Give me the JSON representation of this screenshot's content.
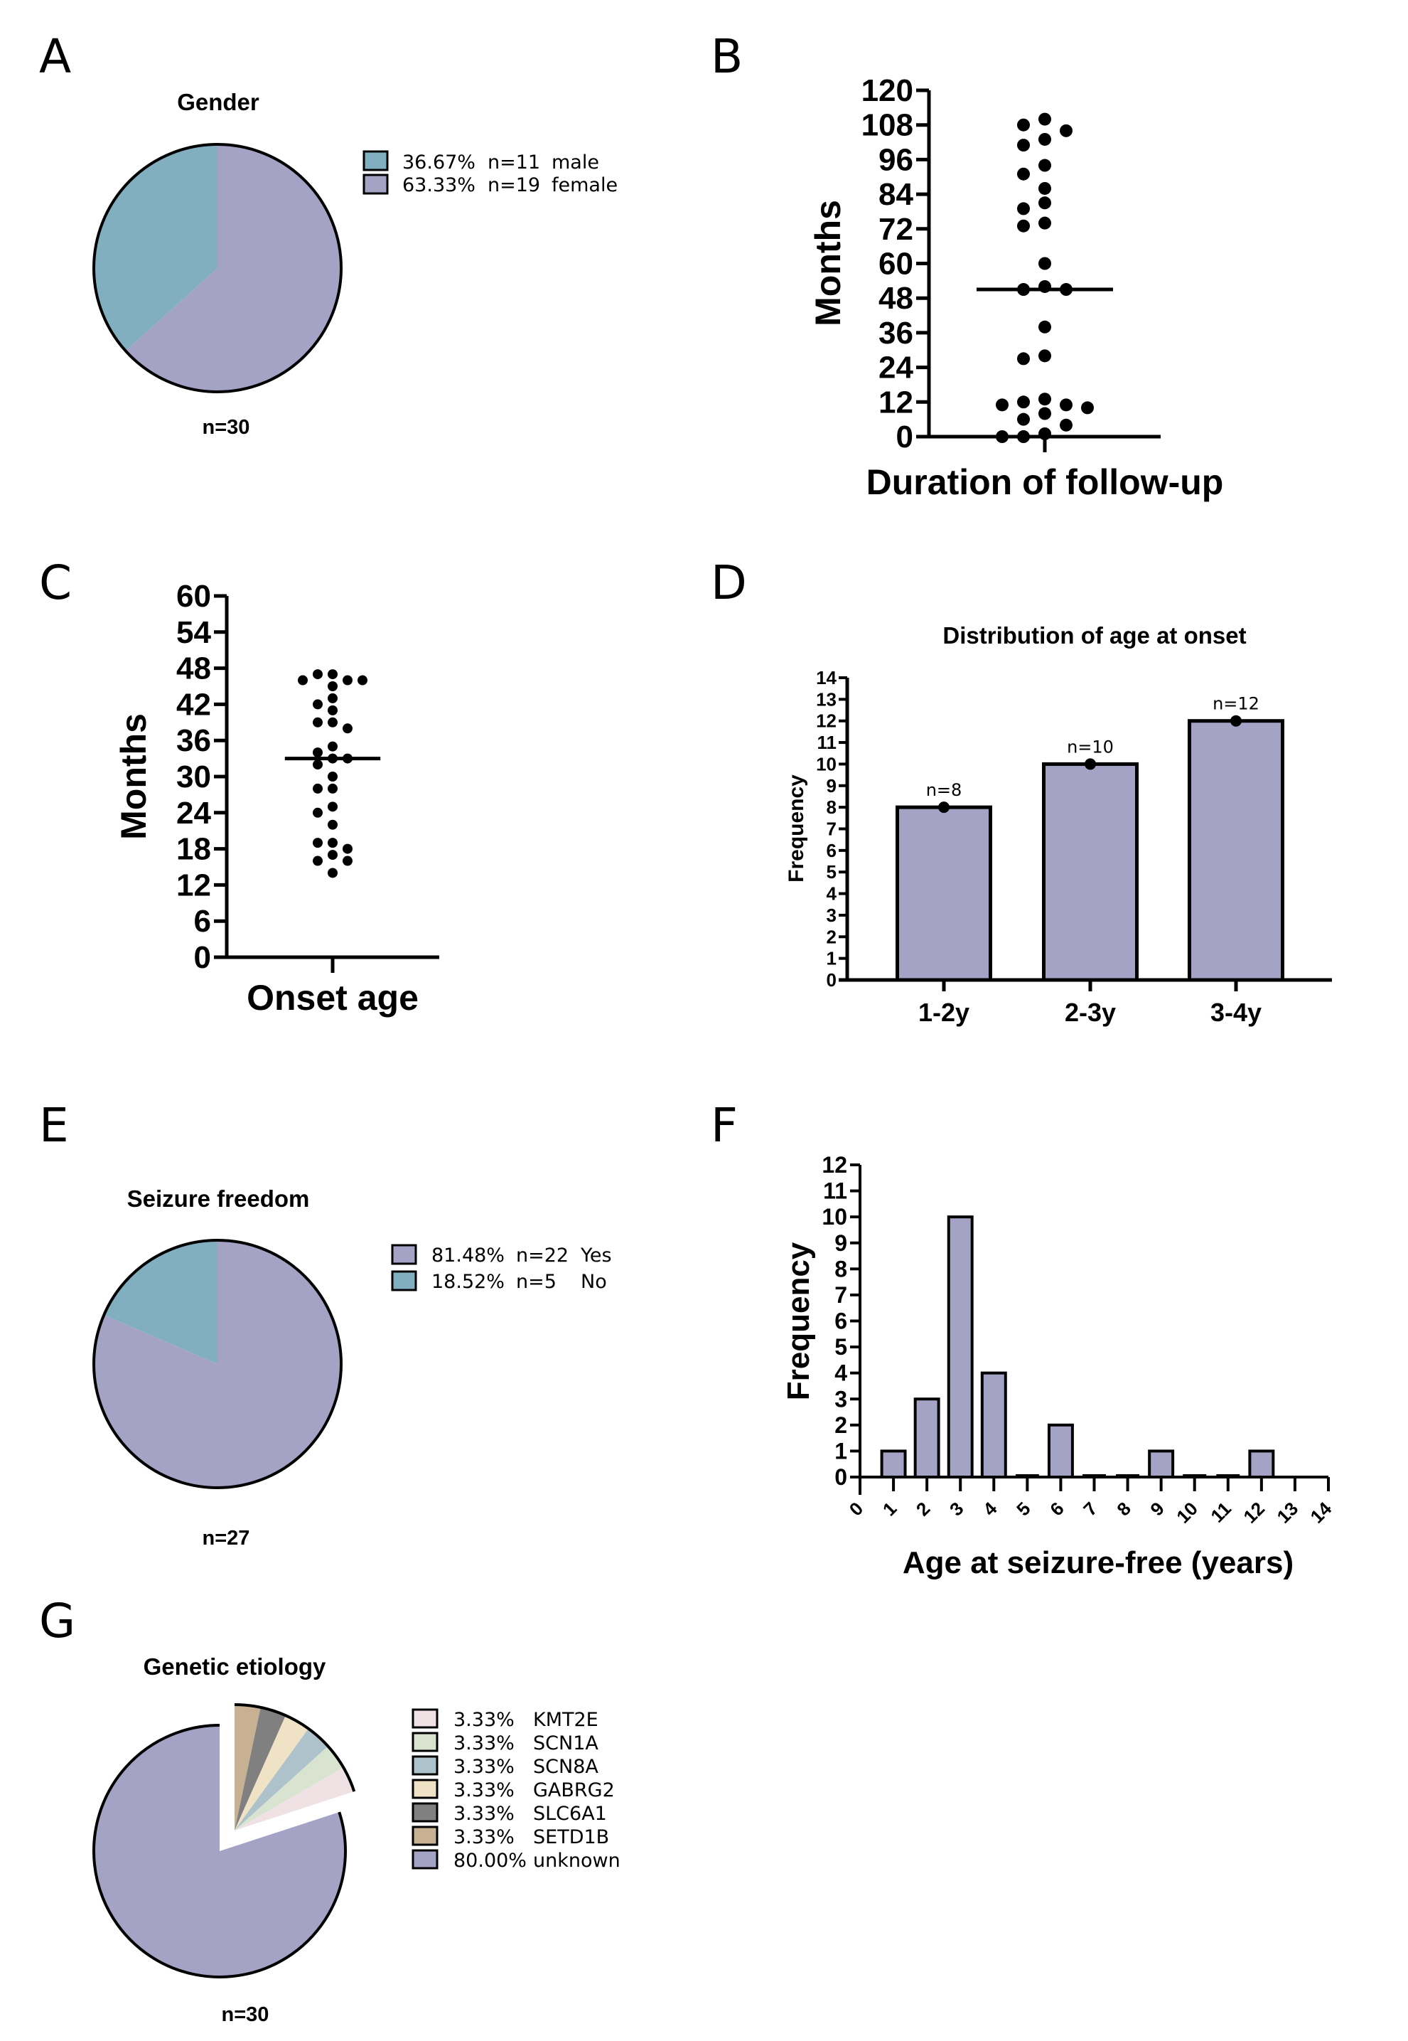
{
  "panels": {
    "A": "A",
    "B": "B",
    "C": "C",
    "D": "D",
    "E": "E",
    "F": "F",
    "G": "G"
  },
  "chart_data": [
    {
      "id": "A",
      "type": "pie",
      "title": "Gender",
      "footer": "n=30",
      "slices": [
        {
          "label": "male",
          "percent": 36.67,
          "pct_text": "36.67%",
          "n_text": "n=11",
          "name_text": "male",
          "color": "#82AFC0"
        },
        {
          "label": "female",
          "percent": 63.33,
          "pct_text": "63.33%",
          "n_text": "n=19",
          "name_text": "female",
          "color": "#A4A3C5"
        }
      ]
    },
    {
      "id": "B",
      "type": "scatter",
      "title": "",
      "xlabel": "Duration of follow-up",
      "ylabel": "Months",
      "ylim": [
        0,
        120
      ],
      "yticks": [
        "0",
        "12",
        "24",
        "36",
        "48",
        "60",
        "72",
        "84",
        "96",
        "108",
        "120"
      ],
      "median": 51,
      "values": [
        110,
        108,
        106,
        103,
        101,
        94,
        91,
        86,
        81,
        79,
        74,
        73,
        60,
        52,
        51,
        51,
        38,
        28,
        27,
        13,
        12,
        11,
        11,
        10,
        8,
        6,
        4,
        1,
        0,
        0
      ]
    },
    {
      "id": "C",
      "type": "scatter",
      "title": "",
      "xlabel": "Onset age",
      "ylabel": "Months",
      "ylim": [
        0,
        60
      ],
      "yticks": [
        "0",
        "6",
        "12",
        "18",
        "24",
        "30",
        "36",
        "42",
        "48",
        "54",
        "60"
      ],
      "median": 33,
      "values": [
        47,
        47,
        46,
        46,
        46,
        45,
        43,
        42,
        41,
        39,
        39,
        38,
        35,
        34,
        33,
        33,
        32,
        30,
        28,
        28,
        25,
        24,
        22,
        19,
        19,
        18,
        17,
        16,
        16,
        14
      ]
    },
    {
      "id": "D",
      "type": "bar",
      "title": "Distribution of age at onset",
      "xlabel": "",
      "ylabel": "Frequency",
      "ylim": [
        0,
        14
      ],
      "yticks": [
        "0",
        "1",
        "2",
        "3",
        "4",
        "5",
        "6",
        "7",
        "8",
        "9",
        "10",
        "11",
        "12",
        "13",
        "14"
      ],
      "categories": [
        "1-2y",
        "2-3y",
        "3-4y"
      ],
      "values": [
        8,
        10,
        12
      ],
      "data_labels": [
        "n=8",
        "n=10",
        "n=12"
      ],
      "color": "#A4A3C5"
    },
    {
      "id": "E",
      "type": "pie",
      "title": "Seizure freedom",
      "footer": "n=27",
      "slices": [
        {
          "label": "Yes",
          "percent": 81.48,
          "pct_text": "81.48%",
          "n_text": "n=22",
          "name_text": "Yes",
          "color": "#A4A3C5"
        },
        {
          "label": "No",
          "percent": 18.52,
          "pct_text": "18.52%",
          "n_text": "n=5",
          "name_text": "No",
          "color": "#82AFC0"
        }
      ]
    },
    {
      "id": "F",
      "type": "bar",
      "title": "",
      "xlabel": "Age at seizure-free (years)",
      "ylabel": "Frequency",
      "ylim": [
        0,
        12
      ],
      "xlim": [
        0,
        14
      ],
      "yticks": [
        "0",
        "1",
        "2",
        "3",
        "4",
        "5",
        "6",
        "7",
        "8",
        "9",
        "10",
        "11",
        "12"
      ],
      "xticks": [
        "0",
        "1",
        "2",
        "3",
        "4",
        "5",
        "6",
        "7",
        "8",
        "9",
        "10",
        "11",
        "12",
        "13",
        "14"
      ],
      "categories": [
        1,
        2,
        3,
        4,
        5,
        6,
        7,
        8,
        9,
        10,
        11,
        12
      ],
      "values": [
        1,
        3,
        10,
        4,
        0,
        2,
        0,
        0,
        1,
        0,
        0,
        1
      ],
      "color": "#A4A3C5"
    },
    {
      "id": "G",
      "type": "pie",
      "title": "Genetic etiology",
      "footer": "n=30",
      "slices": [
        {
          "label": "KMT2E",
          "percent": 3.33,
          "pct_text": "3.33%",
          "name_text": "KMT2E",
          "color": "#F0E1E5",
          "exploded": true
        },
        {
          "label": "SCN1A",
          "percent": 3.33,
          "pct_text": "3.33%",
          "name_text": "SCN1A",
          "color": "#D8E4D0",
          "exploded": true
        },
        {
          "label": "SCN8A",
          "percent": 3.33,
          "pct_text": "3.33%",
          "name_text": "SCN8A",
          "color": "#AEC2CB",
          "exploded": true
        },
        {
          "label": "GABRG2",
          "percent": 3.33,
          "pct_text": "3.33%",
          "name_text": "GABRG2",
          "color": "#F0E2C4",
          "exploded": true
        },
        {
          "label": "SLC6A1",
          "percent": 3.33,
          "pct_text": "3.33%",
          "name_text": "SLC6A1",
          "color": "#808080",
          "exploded": true
        },
        {
          "label": "SETD1B",
          "percent": 3.33,
          "pct_text": "3.33%",
          "name_text": "SETD1B",
          "color": "#C8B193",
          "exploded": true
        },
        {
          "label": "unknown",
          "percent": 80.0,
          "pct_text": "80.00%",
          "name_text": "unknown",
          "color": "#A4A3C5",
          "exploded": false
        }
      ]
    }
  ]
}
